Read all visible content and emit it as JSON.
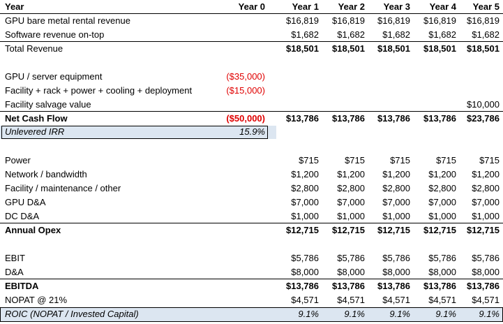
{
  "colors": {
    "negative": "#e00000",
    "highlight_fill": "#dce6f1",
    "border": "#000000"
  },
  "header": {
    "label": "Year",
    "years": [
      "Year 0",
      "Year 1",
      "Year 2",
      "Year 3",
      "Year 4",
      "Year 5"
    ]
  },
  "revenue": {
    "gpu_rental": {
      "label": "GPU bare metal rental revenue",
      "values": [
        "",
        "$16,819",
        "$16,819",
        "$16,819",
        "$16,819",
        "$16,819"
      ]
    },
    "software": {
      "label": "Software revenue on-top",
      "values": [
        "",
        "$1,682",
        "$1,682",
        "$1,682",
        "$1,682",
        "$1,682"
      ]
    },
    "total": {
      "label": "Total Revenue",
      "values": [
        "",
        "$18,501",
        "$18,501",
        "$18,501",
        "$18,501",
        "$18,501"
      ]
    }
  },
  "capex": {
    "gpu_equipment": {
      "label": "GPU / server equipment",
      "values": [
        "($35,000)",
        "",
        "",
        "",
        "",
        ""
      ]
    },
    "facility": {
      "label": "Facility + rack + power + cooling + deployment",
      "values": [
        "($15,000)",
        "",
        "",
        "",
        "",
        ""
      ]
    },
    "salvage": {
      "label": "Facility salvage value",
      "values": [
        "",
        "",
        "",
        "",
        "",
        "$10,000"
      ]
    }
  },
  "cashflow": {
    "net": {
      "label": "Net Cash Flow",
      "values": [
        "($50,000)",
        "$13,786",
        "$13,786",
        "$13,786",
        "$13,786",
        "$23,786"
      ]
    },
    "irr": {
      "label": "Unlevered IRR",
      "value": "15.9%"
    }
  },
  "opex": {
    "power": {
      "label": "Power",
      "values": [
        "",
        "$715",
        "$715",
        "$715",
        "$715",
        "$715"
      ]
    },
    "network": {
      "label": "Network / bandwidth",
      "values": [
        "",
        "$1,200",
        "$1,200",
        "$1,200",
        "$1,200",
        "$1,200"
      ]
    },
    "facility_maint": {
      "label": "Facility / maintenance / other",
      "values": [
        "",
        "$2,800",
        "$2,800",
        "$2,800",
        "$2,800",
        "$2,800"
      ]
    },
    "gpu_da": {
      "label": "GPU D&A",
      "values": [
        "",
        "$7,000",
        "$7,000",
        "$7,000",
        "$7,000",
        "$7,000"
      ]
    },
    "dc_da": {
      "label": "DC D&A",
      "values": [
        "",
        "$1,000",
        "$1,000",
        "$1,000",
        "$1,000",
        "$1,000"
      ]
    },
    "annual": {
      "label": "Annual Opex",
      "values": [
        "",
        "$12,715",
        "$12,715",
        "$12,715",
        "$12,715",
        "$12,715"
      ]
    }
  },
  "profit": {
    "ebit": {
      "label": "EBIT",
      "values": [
        "",
        "$5,786",
        "$5,786",
        "$5,786",
        "$5,786",
        "$5,786"
      ]
    },
    "da": {
      "label": "D&A",
      "values": [
        "",
        "$8,000",
        "$8,000",
        "$8,000",
        "$8,000",
        "$8,000"
      ]
    },
    "ebitda": {
      "label": "EBITDA",
      "values": [
        "",
        "$13,786",
        "$13,786",
        "$13,786",
        "$13,786",
        "$13,786"
      ]
    },
    "nopat": {
      "label": "NOPAT @ 21%",
      "values": [
        "",
        "$4,571",
        "$4,571",
        "$4,571",
        "$4,571",
        "$4,571"
      ]
    },
    "roic": {
      "label": "ROIC (NOPAT / Invested Capital)",
      "values": [
        "",
        "9.1%",
        "9.1%",
        "9.1%",
        "9.1%",
        "9.1%"
      ]
    }
  }
}
